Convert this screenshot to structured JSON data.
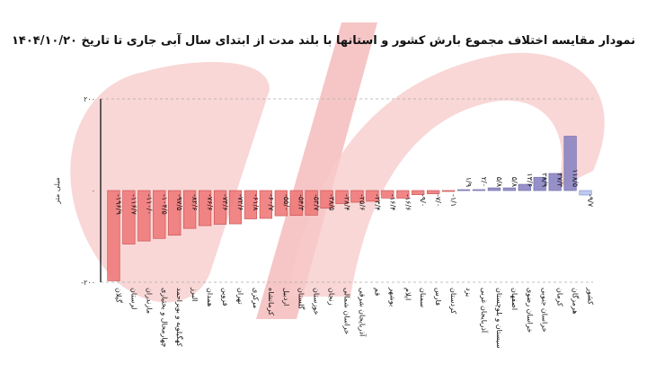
{
  "chart_data": {
    "type": "bar",
    "title": "نمودار مقایسه اختلاف مجموع بارش کشور و استانها با بلند مدت از ابتدای سال آبی جاری تا تاریخ ۱۴۰۴/۱۰/۲۰",
    "ylabel": "میلی متر",
    "ylim": [
      -200,
      200
    ],
    "yticks": [
      "-۲۰۰",
      "۰",
      "۲۰۰"
    ],
    "grid": true,
    "colors": {
      "negative": "#f07c7c",
      "negative_edge": "#c94a4a",
      "positive": "#8e87c4",
      "positive_edge": "#6b64a8",
      "country": "#b9c6ee",
      "country_edge": "#7d8ec9"
    },
    "categories": [
      "گیلان",
      "لرستان",
      "مازندران",
      "چهارمحال و بختیاری",
      "کهگیلویه و بویراحمد",
      "البرز",
      "همدان",
      "قزوین",
      "تهران",
      "مرکزی",
      "کرمانشاه",
      "اردبیل",
      "گلستان",
      "خوزستان",
      "زنجان",
      "خراسان شمالی",
      "آذربایجان شرقی",
      "قم",
      "بوشهر",
      "ایلام",
      "سمنان",
      "فارس",
      "کردستان",
      "یزد",
      "آذربایجان غربی",
      "سیستان و بلوچستان",
      "اصفهان",
      "خراسان رضوی",
      "خراسان جنوبی",
      "کرمان",
      "هرمزگان",
      "کشور"
    ],
    "values": [
      -196.9,
      -116.7,
      -110.0,
      -104.5,
      -97.5,
      -82.6,
      -76.6,
      -73.6,
      -72.6,
      -61.8,
      -60.7,
      -55.0,
      -54.3,
      -53.7,
      -38.5,
      -28.4,
      -25.6,
      -23.4,
      -16.4,
      -16.6,
      -9.0,
      -7.0,
      -1.1,
      1.9,
      2.0,
      5.8,
      5.8,
      13.6,
      28.9,
      37.3,
      118.5,
      -9.7
    ],
    "value_labels": [
      "-۱۹۶/۹",
      "-۱۱۶/۷",
      "-۱۱۰/۰",
      "-۱۰۴/۵",
      "-۹۷/۵",
      "-۸۲/۶",
      "-۷۶/۶",
      "-۷۳/۶",
      "-۷۲/۶",
      "-۶۱/۸",
      "-۶۰/۷",
      "-۵۵/۰",
      "-۵۴/۳",
      "-۵۳/۷",
      "-۳۸/۵",
      "-۲۸/۴",
      "-۲۵/۶",
      "-۲۳/۴",
      "-۱۶/۴",
      "-۱۶/۶",
      "-۹/۰",
      "-۷/۰",
      "-۱/۱",
      "۱/۹",
      "۲/۰",
      "۵/۸",
      "۵/۸",
      "۱۳/۶",
      "۲۸/۹",
      "۳۷/۳",
      "۱۱۸/۵",
      "-۹/۷"
    ]
  }
}
